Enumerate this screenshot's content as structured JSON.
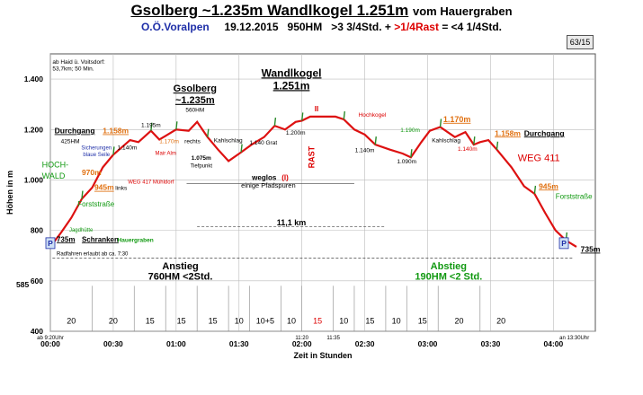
{
  "header": {
    "title_main": "Gsolberg ~1.235m Wandlkogel 1.251m",
    "title_suffix": "vom Hauergraben",
    "region": "O.Ö.Voralpen",
    "date": "19.12.2015",
    "hm": "950HM",
    "time_up": ">3 3/4Std. +",
    "rast": ">1/4Rast",
    "time_down": "= <4 1/4Std.",
    "page_badge": "63/15"
  },
  "chart_data": {
    "type": "line",
    "title": "Gsolberg ~1.235m Wandlkogel 1.251m vom Hauergraben",
    "xlabel": "Zeit in Stunden",
    "ylabel": "Höhen in m",
    "xlim": [
      0,
      260
    ],
    "ylim": [
      400,
      1500
    ],
    "grid": true,
    "yticks": [
      {
        "v": 400,
        "label": "400"
      },
      {
        "v": 600,
        "label": "600"
      },
      {
        "v": 800,
        "label": "800"
      },
      {
        "v": 1000,
        "label": "1.000"
      },
      {
        "v": 1200,
        "label": "1.200"
      },
      {
        "v": 1400,
        "label": "1.400"
      }
    ],
    "extra_ytick": {
      "v": 585,
      "label": "585"
    },
    "xticks": [
      {
        "v": 0,
        "label": "00:00"
      },
      {
        "v": 30,
        "label": "00:30"
      },
      {
        "v": 60,
        "label": "01:00"
      },
      {
        "v": 90,
        "label": "01:30"
      },
      {
        "v": 120,
        "label": "02:00"
      },
      {
        "v": 150,
        "label": "02:30"
      },
      {
        "v": 180,
        "label": "03:00"
      },
      {
        "v": 210,
        "label": "03:30"
      },
      {
        "v": 240,
        "label": "04:00"
      }
    ],
    "series": [
      {
        "color": "#dd1111",
        "points": [
          [
            0,
            735
          ],
          [
            5,
            790
          ],
          [
            10,
            850
          ],
          [
            15,
            925
          ],
          [
            20,
            970
          ],
          [
            25,
            1050
          ],
          [
            30,
            1100
          ],
          [
            38,
            1158
          ],
          [
            42,
            1150
          ],
          [
            48,
            1195
          ],
          [
            52,
            1160
          ],
          [
            55,
            1175
          ],
          [
            60,
            1200
          ],
          [
            66,
            1195
          ],
          [
            70,
            1230
          ],
          [
            75,
            1170
          ],
          [
            80,
            1120
          ],
          [
            85,
            1075
          ],
          [
            91,
            1110
          ],
          [
            96,
            1140
          ],
          [
            102,
            1170
          ],
          [
            107,
            1215
          ],
          [
            112,
            1200
          ],
          [
            117,
            1230
          ],
          [
            120,
            1235
          ],
          [
            124,
            1251
          ],
          [
            136,
            1251
          ],
          [
            140,
            1240
          ],
          [
            145,
            1200
          ],
          [
            150,
            1180
          ],
          [
            155,
            1140
          ],
          [
            162,
            1120
          ],
          [
            168,
            1105
          ],
          [
            172,
            1090
          ],
          [
            177,
            1150
          ],
          [
            181,
            1195
          ],
          [
            186,
            1210
          ],
          [
            193,
            1170
          ],
          [
            198,
            1190
          ],
          [
            202,
            1140
          ],
          [
            205,
            1150
          ],
          [
            209,
            1158
          ],
          [
            213,
            1120
          ],
          [
            220,
            1050
          ],
          [
            226,
            975
          ],
          [
            231,
            945
          ],
          [
            236,
            870
          ],
          [
            241,
            800
          ],
          [
            246,
            760
          ],
          [
            251,
            735
          ]
        ]
      }
    ],
    "time_segments": [
      "20",
      "20",
      "15",
      "15",
      "15",
      "10",
      "10+5",
      "10",
      "15",
      "10",
      "15",
      "10",
      "15",
      "20",
      "20"
    ],
    "time_segment_bounds": [
      0,
      20,
      40,
      55,
      70,
      85,
      95,
      110,
      120,
      135,
      145,
      160,
      170,
      185,
      205,
      225
    ],
    "tick_extras": [
      {
        "x": 0,
        "label": "ab 9:20Uhr",
        "color": "#000000"
      },
      {
        "x": 120,
        "label": "11:20",
        "color": "#000000"
      },
      {
        "x": 135,
        "label": "11:35",
        "color": "#000000"
      },
      {
        "x": 250,
        "label": "an 13:30Uhr",
        "color": "#000000"
      }
    ],
    "annotations": [
      {
        "x": 1,
        "y": 1460,
        "text": "ab Haid ü. Voitsdorf:",
        "size": 6.5,
        "color": "#000000",
        "anchor": "start"
      },
      {
        "x": 1,
        "y": 1435,
        "text": "53,7km; 50 Min.",
        "size": 6.5,
        "color": "#000000",
        "anchor": "start"
      },
      {
        "x": 115,
        "y": 1410,
        "text": "Wandlkogel",
        "size": 12,
        "color": "#000000",
        "bold": true,
        "underline": true
      },
      {
        "x": 115,
        "y": 1360,
        "text": "1.251m",
        "size": 12,
        "color": "#000000",
        "bold": true,
        "underline": true
      },
      {
        "x": 69,
        "y": 1350,
        "text": "Gsolberg",
        "size": 11,
        "color": "#000000",
        "bold": true,
        "underline": true
      },
      {
        "x": 69,
        "y": 1305,
        "text": "~1.235m",
        "size": 11,
        "color": "#000000",
        "bold": true,
        "underline": true
      },
      {
        "x": 69,
        "y": 1270,
        "text": "560HM",
        "size": 6.5,
        "color": "#000000"
      },
      {
        "x": 48,
        "y": 1210,
        "text": "1.195m",
        "size": 6.5,
        "color": "#000000"
      },
      {
        "x": 117,
        "y": 1180,
        "text": "1.200m",
        "size": 6.5,
        "color": "#000000"
      },
      {
        "x": 2,
        "y": 1185,
        "text": "Durchgang",
        "size": 8.5,
        "color": "#000000",
        "bold": true,
        "underline": true,
        "anchor": "start"
      },
      {
        "x": 25,
        "y": 1185,
        "text": "1.158m",
        "size": 8.5,
        "color": "#e07010",
        "bold": true,
        "underline": true,
        "anchor": "start"
      },
      {
        "x": 5,
        "y": 1145,
        "text": "425HM",
        "size": 6.5,
        "color": "#000000",
        "anchor": "start"
      },
      {
        "x": 32,
        "y": 1120,
        "text": "1.140m",
        "size": 6.5,
        "color": "#000000",
        "anchor": "start"
      },
      {
        "x": 52,
        "y": 1145,
        "text": "1.170m",
        "size": 6.5,
        "color": "#e07010",
        "anchor": "start"
      },
      {
        "x": 64,
        "y": 1145,
        "text": "rechts",
        "size": 6.5,
        "color": "#000000",
        "anchor": "start"
      },
      {
        "x": 50,
        "y": 1100,
        "text": "Mair Alm",
        "size": 6,
        "color": "#dd0000",
        "anchor": "start"
      },
      {
        "x": 22,
        "y": 1120,
        "text": "Sicherungen",
        "size": 6,
        "color": "#1f2fa8"
      },
      {
        "x": 22,
        "y": 1095,
        "text": "blaue Seile",
        "size": 6,
        "color": "#1f2fa8"
      },
      {
        "x": -4,
        "y": 1050,
        "text": "HOCH-",
        "size": 9,
        "color": "#119911",
        "anchor": "start"
      },
      {
        "x": -4,
        "y": 1005,
        "text": "WALD",
        "size": 9,
        "color": "#119911",
        "anchor": "start"
      },
      {
        "x": 15,
        "y": 1020,
        "text": "970m",
        "size": 8.5,
        "color": "#e07010",
        "bold": true,
        "anchor": "start"
      },
      {
        "x": 21,
        "y": 960,
        "text": "945m",
        "size": 8.5,
        "color": "#e07010",
        "bold": true,
        "underline": true,
        "anchor": "start"
      },
      {
        "x": 31,
        "y": 960,
        "text": "links",
        "size": 6.5,
        "color": "#000000",
        "anchor": "start"
      },
      {
        "x": 37,
        "y": 985,
        "text": "WEG 417 Mühldorf",
        "size": 6,
        "color": "#dd0000",
        "anchor": "start"
      },
      {
        "x": 13,
        "y": 895,
        "text": "Forststraße",
        "size": 8,
        "color": "#119911",
        "anchor": "start"
      },
      {
        "x": 9,
        "y": 795,
        "text": "Jagdhütte",
        "size": 6,
        "color": "#119911",
        "anchor": "start"
      },
      {
        "x": 3,
        "y": 755,
        "text": "735m",
        "size": 8,
        "color": "#000000",
        "bold": true,
        "underline": true,
        "anchor": "start"
      },
      {
        "x": 15,
        "y": 755,
        "text": "Schranken",
        "size": 8,
        "color": "#000000",
        "bold": true,
        "underline": true,
        "anchor": "start"
      },
      {
        "x": 32,
        "y": 755,
        "text": "Hauergraben",
        "size": 6.5,
        "color": "#119911",
        "bold": true,
        "anchor": "start"
      },
      {
        "x": 3,
        "y": 700,
        "text": "Radfahren erlaubt ab ca. 7:30",
        "size": 6,
        "color": "#000000",
        "anchor": "start"
      },
      {
        "x": 72,
        "y": 1080,
        "text": "1.075m",
        "size": 6.5,
        "color": "#000000",
        "bold": true
      },
      {
        "x": 72,
        "y": 1050,
        "text": "Tiefpunkt",
        "size": 6,
        "color": "#000000"
      },
      {
        "x": 78,
        "y": 1150,
        "text": "Kahlschlag",
        "size": 6.5,
        "color": "#000000",
        "anchor": "start"
      },
      {
        "x": 95,
        "y": 1140,
        "text": "1.140 Grat",
        "size": 6.5,
        "color": "#000000",
        "anchor": "start"
      },
      {
        "x": 126,
        "y": 1090,
        "text": "RAST",
        "size": 9,
        "color": "#dd0000",
        "bold": true,
        "rotate": -90
      },
      {
        "x": 127,
        "y": 1273,
        "text": "II",
        "size": 8,
        "color": "#dd0000",
        "bold": true
      },
      {
        "x": 147,
        "y": 1250,
        "text": "Hochkogel",
        "size": 6.5,
        "color": "#dd0000",
        "anchor": "start"
      },
      {
        "x": 150,
        "y": 1110,
        "text": "1.140m",
        "size": 6.5,
        "color": "#000000"
      },
      {
        "x": 167,
        "y": 1190,
        "text": "1.190m",
        "size": 6.5,
        "color": "#119911",
        "anchor": "start"
      },
      {
        "x": 170,
        "y": 1065,
        "text": "1.090m",
        "size": 6.5,
        "color": "#000000"
      },
      {
        "x": 182,
        "y": 1150,
        "text": "Kahlschlag",
        "size": 6.5,
        "color": "#000000",
        "anchor": "start"
      },
      {
        "x": 194,
        "y": 1230,
        "text": "1.170m",
        "size": 9,
        "color": "#e07010",
        "bold": true,
        "underline": true
      },
      {
        "x": 199,
        "y": 1115,
        "text": "1.140m",
        "size": 6.5,
        "color": "#dd0000"
      },
      {
        "x": 212,
        "y": 1175,
        "text": "1.158m",
        "size": 8.5,
        "color": "#e07010",
        "bold": true,
        "underline": true,
        "anchor": "start"
      },
      {
        "x": 226,
        "y": 1175,
        "text": "Durchgang",
        "size": 8.5,
        "color": "#000000",
        "bold": true,
        "underline": true,
        "anchor": "start"
      },
      {
        "x": 223,
        "y": 1075,
        "text": "WEG 411",
        "size": 11,
        "color": "#dd0000",
        "anchor": "start"
      },
      {
        "x": 233,
        "y": 965,
        "text": "945m",
        "size": 8.5,
        "color": "#e07010",
        "bold": true,
        "underline": true,
        "anchor": "start"
      },
      {
        "x": 241,
        "y": 925,
        "text": "Forststraße",
        "size": 8,
        "color": "#119911",
        "anchor": "start"
      },
      {
        "x": 253,
        "y": 715,
        "text": "735m",
        "size": 8.5,
        "color": "#000000",
        "bold": true,
        "underline": true,
        "anchor": "start"
      },
      {
        "x": 102,
        "y": 1000,
        "text": "weglos",
        "size": 8,
        "color": "#000000",
        "bold": true
      },
      {
        "x": 112,
        "y": 1000,
        "text": "(I)",
        "size": 8,
        "color": "#dd0000",
        "bold": true
      },
      {
        "x": 104,
        "y": 970,
        "text": "einige Pfadspuren",
        "size": 7.5,
        "color": "#000000"
      },
      {
        "x": 115,
        "y": 820,
        "text": "11,1 km",
        "size": 9,
        "color": "#000000",
        "bold": true
      },
      {
        "x": 62,
        "y": 645,
        "text": "Anstieg",
        "size": 11,
        "color": "#000000",
        "bold": true
      },
      {
        "x": 62,
        "y": 605,
        "text": "760HM <2Std.",
        "size": 11,
        "color": "#000000",
        "bold": true
      },
      {
        "x": 190,
        "y": 645,
        "text": "Abstieg",
        "size": 11,
        "color": "#119911",
        "bold": true
      },
      {
        "x": 190,
        "y": 605,
        "text": "190HM  <2 Std.",
        "size": 11,
        "color": "#119911",
        "bold": true
      }
    ],
    "markers": [
      {
        "x": 0,
        "y": 760,
        "label": "P"
      },
      {
        "x": 245,
        "y": 760,
        "label": "P"
      }
    ]
  }
}
